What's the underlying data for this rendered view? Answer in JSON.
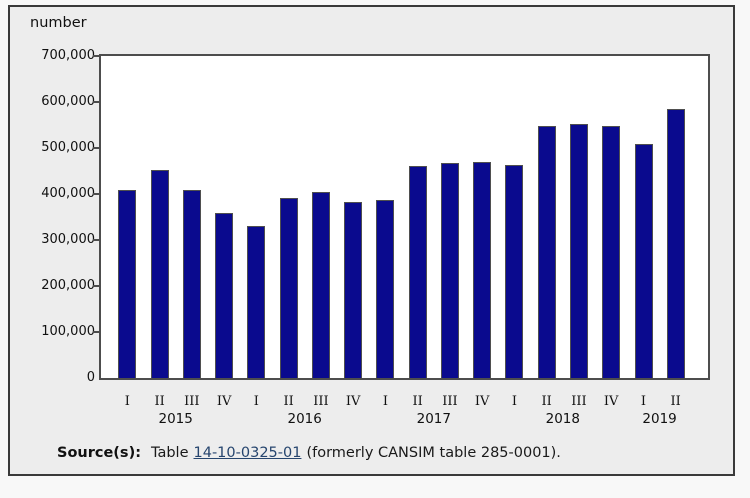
{
  "figure": {
    "source": {
      "prefix": "Source(s):",
      "text_before_link": "Table",
      "link": "14-10-0325-01",
      "text_after_link": "(formerly CANSIM table 285-0001)."
    }
  },
  "colors": {
    "bar_fill": "#0a0a8e",
    "bar_border": "#4f4f4f",
    "plot_frame": "#4d4d4d",
    "figure_background": "#ededed",
    "plot_background": "#ffffff",
    "link": "#26456e",
    "text": "#111111"
  },
  "chart_data": {
    "type": "bar",
    "title": "",
    "xlabel": "",
    "ylabel": "number",
    "ylim": [
      0,
      700000
    ],
    "ytick_step": 100000,
    "ytick_labels": [
      "0",
      "100,000",
      "200,000",
      "300,000",
      "400,000",
      "500,000",
      "600,000",
      "700,000"
    ],
    "grid": false,
    "legend": false,
    "quarters": [
      "I",
      "II",
      "III",
      "IV",
      "I",
      "II",
      "III",
      "IV",
      "I",
      "II",
      "III",
      "IV",
      "I",
      "II",
      "III",
      "IV",
      "I",
      "II"
    ],
    "year_groups": [
      {
        "label": "2015",
        "count": 4
      },
      {
        "label": "2016",
        "count": 4
      },
      {
        "label": "2017",
        "count": 4
      },
      {
        "label": "2018",
        "count": 4
      },
      {
        "label": "2019",
        "count": 2
      }
    ],
    "series": [
      {
        "name": "number",
        "values": [
          408000,
          453000,
          409000,
          359000,
          330000,
          392000,
          405000,
          382000,
          388000,
          460000,
          468000,
          470000,
          464000,
          549000,
          553000,
          549000,
          508000,
          584000
        ]
      }
    ]
  }
}
